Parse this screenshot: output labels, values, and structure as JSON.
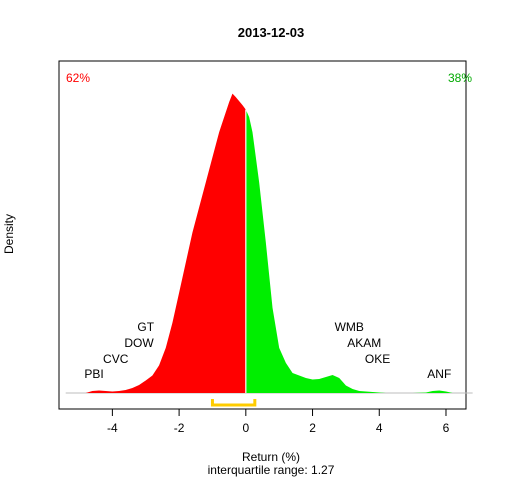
{
  "chart_data": {
    "type": "area",
    "title": "2013-12-03",
    "xlabel": "Return (%)",
    "subxlabel": "interquartile range: 1.27",
    "ylabel": "Density",
    "xlim": [
      -5.6,
      6.6
    ],
    "ylim": [
      0,
      0.64
    ],
    "xticks": [
      -4,
      -2,
      0,
      2,
      4,
      6
    ],
    "neg_share": {
      "label": "62%",
      "color": "#ff0000"
    },
    "pos_share": {
      "label": "38%",
      "color": "#00cc00"
    },
    "split_x": 0,
    "colors": {
      "negative": "#ff0000",
      "positive": "#00ee00",
      "iqr": "#ffcc00",
      "baseline": "#bebebe"
    },
    "iqr": [
      -1.0,
      0.27
    ],
    "density": {
      "x": [
        -4.8,
        -4.6,
        -4.4,
        -4.2,
        -4.0,
        -3.8,
        -3.6,
        -3.4,
        -3.2,
        -3.0,
        -2.8,
        -2.6,
        -2.4,
        -2.2,
        -2.0,
        -1.8,
        -1.6,
        -1.4,
        -1.2,
        -1.0,
        -0.8,
        -0.6,
        -0.5,
        -0.4,
        -0.3,
        -0.2,
        -0.1,
        0.0,
        0.1,
        0.2,
        0.4,
        0.6,
        0.8,
        1.0,
        1.2,
        1.4,
        1.6,
        1.8,
        2.0,
        2.2,
        2.4,
        2.6,
        2.8,
        3.0,
        3.2,
        3.4,
        3.6,
        3.8,
        4.0,
        4.2,
        4.5,
        5.0,
        5.4,
        5.6,
        5.8,
        6.0,
        6.2
      ],
      "y": [
        0.0,
        0.004,
        0.005,
        0.004,
        0.003,
        0.004,
        0.006,
        0.01,
        0.016,
        0.025,
        0.035,
        0.055,
        0.09,
        0.14,
        0.2,
        0.26,
        0.32,
        0.37,
        0.42,
        0.47,
        0.52,
        0.56,
        0.58,
        0.597,
        0.59,
        0.582,
        0.574,
        0.565,
        0.55,
        0.52,
        0.42,
        0.3,
        0.17,
        0.09,
        0.06,
        0.04,
        0.035,
        0.03,
        0.027,
        0.028,
        0.032,
        0.036,
        0.03,
        0.015,
        0.008,
        0.004,
        0.003,
        0.002,
        0.001,
        0.0,
        0.0,
        0.0,
        0.001,
        0.004,
        0.005,
        0.003,
        0.0
      ]
    },
    "annotations": [
      {
        "text": "PBI",
        "x": -4.55,
        "y": 0.03
      },
      {
        "text": "CVC",
        "x": -3.9,
        "y": 0.06
      },
      {
        "text": "DOW",
        "x": -3.2,
        "y": 0.092
      },
      {
        "text": "GT",
        "x": -3.0,
        "y": 0.124
      },
      {
        "text": "WMB",
        "x": 3.1,
        "y": 0.124
      },
      {
        "text": "AKAM",
        "x": 3.55,
        "y": 0.092
      },
      {
        "text": "OKE",
        "x": 3.95,
        "y": 0.06
      },
      {
        "text": "ANF",
        "x": 5.8,
        "y": 0.03
      }
    ]
  }
}
